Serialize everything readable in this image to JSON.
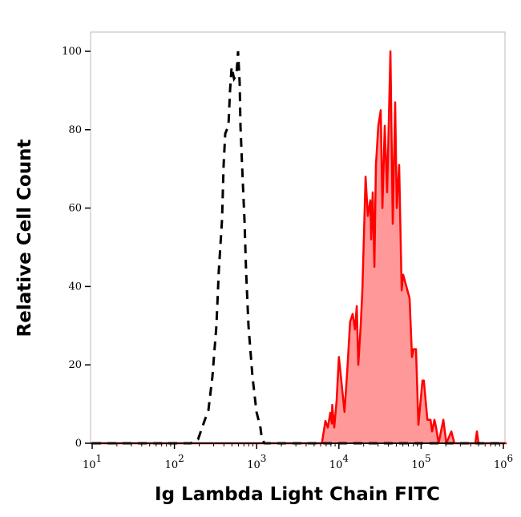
{
  "chart_data": {
    "type": "area",
    "title": "",
    "xlabel": "Ig Lambda Light Chain FITC",
    "ylabel": "Relative Cell Count",
    "x_scale": "log",
    "xlim": [
      9.6,
      1100000
    ],
    "ylim": [
      0,
      100
    ],
    "x_ticks": [
      {
        "base": "10",
        "exp": "1",
        "value": 10
      },
      {
        "base": "10",
        "exp": "2",
        "value": 100
      },
      {
        "base": "10",
        "exp": "3",
        "value": 1000
      },
      {
        "base": "10",
        "exp": "4",
        "value": 10000
      },
      {
        "base": "10",
        "exp": "5",
        "value": 100000
      },
      {
        "base": "10",
        "exp": "6",
        "value": 1000000
      }
    ],
    "y_ticks": [
      "0",
      "20",
      "40",
      "60",
      "80",
      "100"
    ],
    "grid": false,
    "series": [
      {
        "style": "dashed-line",
        "color": "#000000",
        "x": [
          10,
          158,
          194,
          232,
          259,
          290,
          324,
          347,
          379,
          397,
          415,
          454,
          475,
          496,
          531,
          568,
          594,
          621,
          635,
          665,
          711,
          743,
          796,
          890,
          995,
          1110,
          1160,
          1250,
          1000000
        ],
        "y": [
          0,
          0,
          1,
          5.7,
          8.4,
          17,
          30,
          44,
          57,
          71,
          79,
          81,
          90,
          96,
          93,
          94,
          100,
          92,
          81,
          71,
          57,
          44,
          30,
          17,
          8,
          4,
          1,
          0,
          0
        ]
      },
      {
        "style": "filled-area",
        "color": "#ff0000",
        "fill": "#ff9999",
        "x": [
          9.6,
          3830,
          6220,
          6860,
          7340,
          7860,
          8210,
          8300,
          8780,
          9390,
          10000,
          11700,
          12600,
          13700,
          14700,
          15700,
          16500,
          17200,
          18400,
          19300,
          21100,
          22500,
          24100,
          24700,
          25800,
          27000,
          28200,
          30200,
          32300,
          33800,
          36100,
          38600,
          42300,
          45200,
          48300,
          50600,
          54100,
          57900,
          60500,
          66200,
          72400,
          77500,
          81000,
          86600,
          92700,
          104000,
          108000,
          119000,
          130000,
          136000,
          145000,
          152000,
          163000,
          186000,
          203000,
          233000,
          254000,
          456000,
          477000,
          499000,
          836000,
          1100000
        ],
        "y": [
          0,
          0,
          0,
          5.7,
          4,
          7.8,
          5,
          9.8,
          4,
          11,
          22,
          8,
          18,
          31,
          33,
          29,
          35,
          20,
          30,
          39,
          68,
          58,
          62,
          52,
          64,
          45,
          71,
          81,
          85,
          60,
          81,
          64,
          100,
          56,
          87,
          60,
          71,
          39,
          43,
          40,
          37,
          22,
          24,
          24,
          4.7,
          16,
          16,
          6,
          6,
          3,
          6,
          4,
          0,
          6,
          0,
          3,
          0,
          0,
          3,
          0,
          0,
          0
        ]
      }
    ]
  }
}
